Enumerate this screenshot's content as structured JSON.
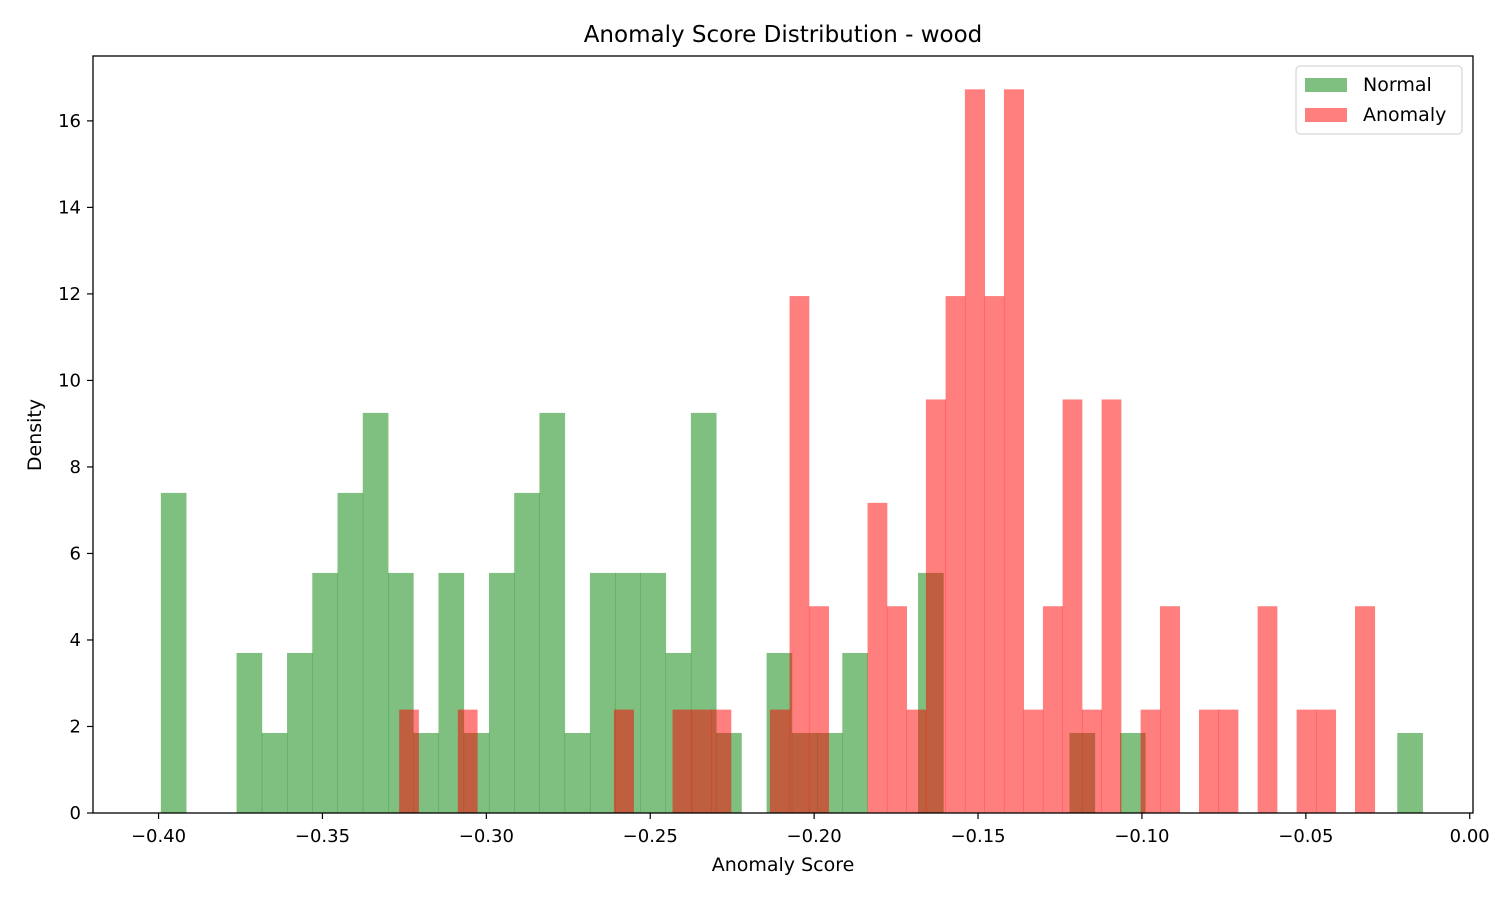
{
  "chart_data": {
    "type": "histogram",
    "title": "Anomaly Score Distribution - wood",
    "xlabel": "Anomaly Score",
    "ylabel": "Density",
    "xlim": [
      -0.42,
      0.001
    ],
    "ylim": [
      0,
      17.5
    ],
    "xticks": [
      -0.4,
      -0.35,
      -0.3,
      -0.25,
      -0.2,
      -0.15,
      -0.1,
      -0.05,
      0.0
    ],
    "xtick_labels": [
      "−0.40",
      "−0.35",
      "−0.30",
      "−0.25",
      "−0.20",
      "−0.15",
      "−0.10",
      "−0.05",
      "0.00"
    ],
    "yticks": [
      0,
      2,
      4,
      6,
      8,
      10,
      12,
      14,
      16
    ],
    "ytick_labels": [
      "0",
      "2",
      "4",
      "6",
      "8",
      "10",
      "12",
      "14",
      "16"
    ],
    "legend": {
      "position": "top-right"
    },
    "grid": false,
    "series": [
      {
        "name": "Normal",
        "color": "#008000",
        "alpha": 0.5,
        "bins": [
          {
            "x0": -0.3993,
            "x1": -0.3916,
            "y": 7.4
          },
          {
            "x0": -0.3762,
            "x1": -0.3685,
            "y": 3.7
          },
          {
            "x0": -0.3685,
            "x1": -0.3608,
            "y": 1.85
          },
          {
            "x0": -0.3608,
            "x1": -0.3531,
            "y": 3.7
          },
          {
            "x0": -0.3531,
            "x1": -0.3454,
            "y": 5.55
          },
          {
            "x0": -0.3454,
            "x1": -0.3377,
            "y": 7.4
          },
          {
            "x0": -0.3377,
            "x1": -0.33,
            "y": 9.25
          },
          {
            "x0": -0.33,
            "x1": -0.3223,
            "y": 5.55
          },
          {
            "x0": -0.3223,
            "x1": -0.3146,
            "y": 1.85
          },
          {
            "x0": -0.3146,
            "x1": -0.3069,
            "y": 5.55
          },
          {
            "x0": -0.3069,
            "x1": -0.2992,
            "y": 1.85
          },
          {
            "x0": -0.2992,
            "x1": -0.2915,
            "y": 5.55
          },
          {
            "x0": -0.2915,
            "x1": -0.2838,
            "y": 7.4
          },
          {
            "x0": -0.2838,
            "x1": -0.2761,
            "y": 9.25
          },
          {
            "x0": -0.2761,
            "x1": -0.2684,
            "y": 1.85
          },
          {
            "x0": -0.2684,
            "x1": -0.2607,
            "y": 5.55
          },
          {
            "x0": -0.2607,
            "x1": -0.253,
            "y": 5.55
          },
          {
            "x0": -0.253,
            "x1": -0.2453,
            "y": 5.55
          },
          {
            "x0": -0.2453,
            "x1": -0.2376,
            "y": 3.7
          },
          {
            "x0": -0.2376,
            "x1": -0.2299,
            "y": 9.25
          },
          {
            "x0": -0.2299,
            "x1": -0.2222,
            "y": 1.85
          },
          {
            "x0": -0.2145,
            "x1": -0.2068,
            "y": 3.7
          },
          {
            "x0": -0.2068,
            "x1": -0.1991,
            "y": 1.85
          },
          {
            "x0": -0.1991,
            "x1": -0.1914,
            "y": 1.85
          },
          {
            "x0": -0.1914,
            "x1": -0.1837,
            "y": 3.7
          },
          {
            "x0": -0.1683,
            "x1": -0.1606,
            "y": 5.55
          },
          {
            "x0": -0.1221,
            "x1": -0.1144,
            "y": 1.85
          },
          {
            "x0": -0.1067,
            "x1": -0.099,
            "y": 1.85
          },
          {
            "x0": -0.0221,
            "x1": -0.0144,
            "y": 1.85
          }
        ]
      },
      {
        "name": "Anomaly",
        "color": "#ff0000",
        "alpha": 0.5,
        "bins": [
          {
            "x0": -0.3266,
            "x1": -0.3207,
            "y": 2.39
          },
          {
            "x0": -0.3087,
            "x1": -0.3028,
            "y": 2.39
          },
          {
            "x0": -0.2611,
            "x1": -0.2551,
            "y": 2.39
          },
          {
            "x0": -0.2432,
            "x1": -0.2373,
            "y": 2.39
          },
          {
            "x0": -0.2373,
            "x1": -0.2313,
            "y": 2.39
          },
          {
            "x0": -0.2313,
            "x1": -0.2254,
            "y": 2.39
          },
          {
            "x0": -0.2135,
            "x1": -0.2075,
            "y": 2.39
          },
          {
            "x0": -0.2075,
            "x1": -0.2016,
            "y": 11.95
          },
          {
            "x0": -0.2016,
            "x1": -0.1956,
            "y": 4.78
          },
          {
            "x0": -0.1837,
            "x1": -0.1778,
            "y": 7.17
          },
          {
            "x0": -0.1778,
            "x1": -0.1718,
            "y": 4.78
          },
          {
            "x0": -0.1718,
            "x1": -0.1659,
            "y": 2.39
          },
          {
            "x0": -0.1659,
            "x1": -0.1599,
            "y": 9.56
          },
          {
            "x0": -0.1599,
            "x1": -0.154,
            "y": 11.95
          },
          {
            "x0": -0.154,
            "x1": -0.148,
            "y": 16.73
          },
          {
            "x0": -0.148,
            "x1": -0.1421,
            "y": 11.95
          },
          {
            "x0": -0.1421,
            "x1": -0.1361,
            "y": 16.73
          },
          {
            "x0": -0.1361,
            "x1": -0.1302,
            "y": 2.39
          },
          {
            "x0": -0.1302,
            "x1": -0.1242,
            "y": 4.78
          },
          {
            "x0": -0.1242,
            "x1": -0.1183,
            "y": 9.56
          },
          {
            "x0": -0.1183,
            "x1": -0.1123,
            "y": 2.39
          },
          {
            "x0": -0.1123,
            "x1": -0.1064,
            "y": 9.56
          },
          {
            "x0": -0.1004,
            "x1": -0.0945,
            "y": 2.39
          },
          {
            "x0": -0.0945,
            "x1": -0.0885,
            "y": 4.78
          },
          {
            "x0": -0.0826,
            "x1": -0.0766,
            "y": 2.39
          },
          {
            "x0": -0.0766,
            "x1": -0.0707,
            "y": 2.39
          },
          {
            "x0": -0.0647,
            "x1": -0.0588,
            "y": 4.78
          },
          {
            "x0": -0.0528,
            "x1": -0.0469,
            "y": 2.39
          },
          {
            "x0": -0.0469,
            "x1": -0.0409,
            "y": 2.39
          },
          {
            "x0": -0.035,
            "x1": -0.029,
            "y": 4.78
          }
        ]
      }
    ]
  }
}
